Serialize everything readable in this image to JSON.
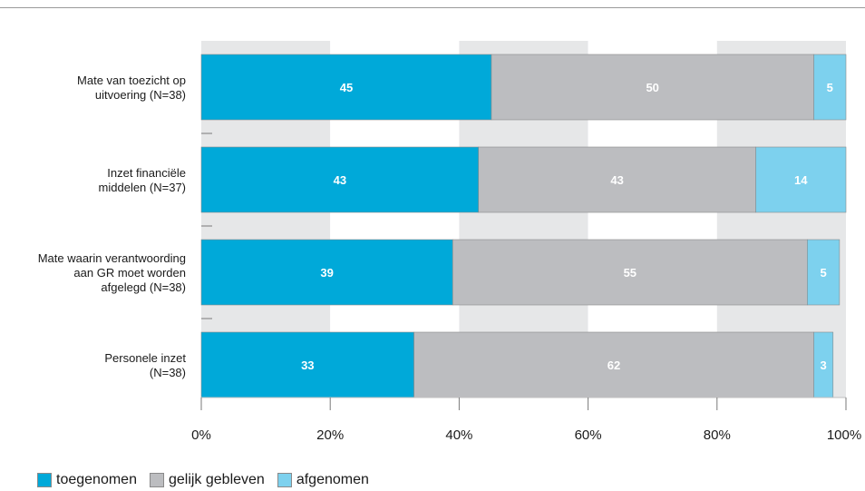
{
  "chart_data": {
    "type": "bar",
    "orientation": "horizontal",
    "stacked": true,
    "categories": [
      [
        "Mate van toezicht op",
        "uitvoering (N=38)"
      ],
      [
        "Inzet financiële",
        "middelen (N=37)"
      ],
      [
        "Mate waarin verantwoording",
        "aan GR moet worden",
        "afgelegd (N=38)"
      ],
      [
        "Personele inzet",
        "(N=38)"
      ]
    ],
    "series": [
      {
        "name": "toegenomen",
        "color": "#00a9d9",
        "values": [
          45,
          43,
          39,
          33
        ]
      },
      {
        "name": "gelijk gebleven",
        "color": "#bcbdc0",
        "values": [
          50,
          43,
          55,
          62
        ]
      },
      {
        "name": "afgenomen",
        "color": "#7dd1ee",
        "values": [
          5,
          14,
          5,
          3
        ]
      }
    ],
    "xlim": [
      0,
      100
    ],
    "xticks": [
      "0%",
      "20%",
      "40%",
      "60%",
      "80%",
      "100%"
    ],
    "legend_position": "bottom-left",
    "grid_bands": true
  }
}
